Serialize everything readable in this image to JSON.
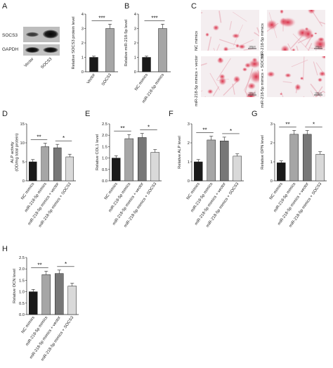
{
  "panels": {
    "A": "A",
    "B": "B",
    "C": "C",
    "D": "D",
    "E": "E",
    "F": "F",
    "G": "G",
    "H": "H"
  },
  "blot": {
    "rows": [
      "SOCS3",
      "GAPDH"
    ],
    "lanes": [
      "Vector",
      "SOCS3"
    ]
  },
  "micrographs": {
    "labels": [
      "NC mimics",
      "miR-218-5p mimics",
      "miR-218-5p mimics + vector",
      "miR-218-5p mimics + SOCS3"
    ],
    "scale_bar": "100μm"
  },
  "chart_data": [
    {
      "panel": "A",
      "type": "bar",
      "categories": [
        "Vector",
        "SOCS3"
      ],
      "values": [
        1.0,
        3.0
      ],
      "errors": [
        0.08,
        0.3
      ],
      "ylabel": "Relative SOCS3 protein level",
      "ylim": [
        0,
        4
      ],
      "yticks": [
        0,
        1,
        2,
        3,
        4
      ],
      "colors": [
        "#1a1a1a",
        "#a6a6a6"
      ],
      "significance": [
        {
          "from": 0,
          "to": 1,
          "label": "***"
        }
      ]
    },
    {
      "panel": "B",
      "type": "bar",
      "categories": [
        "NC mimics",
        "miR-218-5p mimics"
      ],
      "values": [
        1.0,
        3.0
      ],
      "errors": [
        0.08,
        0.3
      ],
      "ylabel": "Relative miR-218-5p level",
      "ylim": [
        0,
        4
      ],
      "yticks": [
        0,
        1,
        2,
        3,
        4
      ],
      "colors": [
        "#1a1a1a",
        "#a6a6a6"
      ],
      "significance": [
        {
          "from": 0,
          "to": 1,
          "label": "***"
        }
      ]
    },
    {
      "panel": "D",
      "type": "bar",
      "categories": [
        "NC mimics",
        "miR-218-5p mimics",
        "miR-218-5p mimics + vector",
        "miR-218-5p mimics + SOCS3"
      ],
      "values": [
        5.0,
        9.0,
        8.7,
        6.3
      ],
      "errors": [
        0.6,
        0.9,
        0.9,
        0.7
      ],
      "ylabel": "ALP activity (OD/mg total protein)",
      "ylim": [
        0,
        15
      ],
      "yticks": [
        0,
        5,
        10,
        15
      ],
      "colors": [
        "#1a1a1a",
        "#a6a6a6",
        "#777777",
        "#d9d9d9"
      ],
      "significance": [
        {
          "from": 0,
          "to": 1,
          "label": "**"
        },
        {
          "from": 2,
          "to": 3,
          "label": "*"
        }
      ]
    },
    {
      "panel": "E",
      "type": "bar",
      "categories": [
        "NC mimics",
        "miR-218-5p mimics",
        "miR-218-5p mimics + vector",
        "miR-218-5p mimics + SOCS3"
      ],
      "values": [
        1.0,
        1.85,
        1.9,
        1.25
      ],
      "errors": [
        0.1,
        0.18,
        0.18,
        0.12
      ],
      "ylabel": "Relative COL1 level",
      "ylim": [
        0,
        2.5
      ],
      "yticks": [
        0.0,
        0.5,
        1.0,
        1.5,
        2.0,
        2.5
      ],
      "colors": [
        "#1a1a1a",
        "#a6a6a6",
        "#777777",
        "#d9d9d9"
      ],
      "significance": [
        {
          "from": 0,
          "to": 1,
          "label": "**"
        },
        {
          "from": 2,
          "to": 3,
          "label": "*"
        }
      ]
    },
    {
      "panel": "F",
      "type": "bar",
      "categories": [
        "NC mimics",
        "miR-218-5p mimics",
        "miR-218-5p mimics + vector",
        "miR-218-5p mimics + SOCS3"
      ],
      "values": [
        1.0,
        2.15,
        2.1,
        1.3
      ],
      "errors": [
        0.12,
        0.2,
        0.2,
        0.12
      ],
      "ylabel": "Relative ALP level",
      "ylim": [
        0,
        3
      ],
      "yticks": [
        0,
        1,
        2,
        3
      ],
      "colors": [
        "#1a1a1a",
        "#a6a6a6",
        "#777777",
        "#d9d9d9"
      ],
      "significance": [
        {
          "from": 0,
          "to": 1,
          "label": "**"
        },
        {
          "from": 2,
          "to": 3,
          "label": "*"
        }
      ]
    },
    {
      "panel": "G",
      "type": "bar",
      "categories": [
        "NC mimics",
        "miR-218-5p mimics",
        "miR-218-5p mimics + vector",
        "miR-218-5p mimics + SOCS3"
      ],
      "values": [
        0.95,
        2.45,
        2.45,
        1.4
      ],
      "errors": [
        0.1,
        0.2,
        0.2,
        0.13
      ],
      "ylabel": "Relative OPN level",
      "ylim": [
        0,
        3
      ],
      "yticks": [
        0,
        1,
        2,
        3
      ],
      "colors": [
        "#1a1a1a",
        "#a6a6a6",
        "#777777",
        "#d9d9d9"
      ],
      "significance": [
        {
          "from": 0,
          "to": 1,
          "label": "**"
        },
        {
          "from": 2,
          "to": 3,
          "label": "*"
        }
      ]
    },
    {
      "panel": "H",
      "type": "bar",
      "categories": [
        "NC mimics",
        "miR-218-5p mimics",
        "miR-218-5p mimics + vector",
        "miR-218-5p mimics + SOCS3"
      ],
      "values": [
        1.0,
        1.75,
        1.8,
        1.25
      ],
      "errors": [
        0.1,
        0.15,
        0.15,
        0.12
      ],
      "ylabel": "Relative OCN level",
      "ylim": [
        0,
        2.5
      ],
      "yticks": [
        0.0,
        0.5,
        1.0,
        1.5,
        2.0,
        2.5
      ],
      "colors": [
        "#1a1a1a",
        "#a6a6a6",
        "#777777",
        "#d9d9d9"
      ],
      "significance": [
        {
          "from": 0,
          "to": 1,
          "label": "**"
        },
        {
          "from": 2,
          "to": 3,
          "label": "*"
        }
      ]
    }
  ]
}
